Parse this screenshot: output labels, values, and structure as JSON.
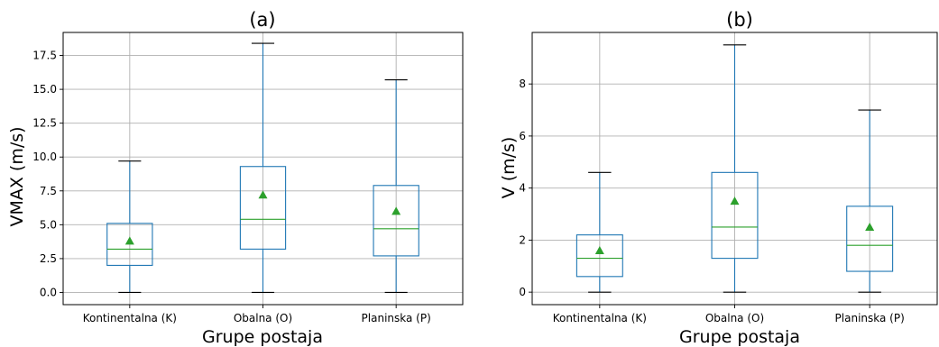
{
  "chart_data": [
    {
      "type": "boxplot",
      "title": "(a)",
      "xlabel": "Grupe postaja",
      "ylabel": "VMAX (m/s)",
      "categories": [
        "Kontinentalna (K)",
        "Obalna (O)",
        "Planinska (P)"
      ],
      "ylim": [
        -0.9,
        19.2
      ],
      "yticks": [
        0.0,
        2.5,
        5.0,
        7.5,
        10.0,
        12.5,
        15.0,
        17.5
      ],
      "ytick_labels": [
        "0.0",
        "2.5",
        "5.0",
        "7.5",
        "10.0",
        "12.5",
        "15.0",
        "17.5"
      ],
      "grid": true,
      "colors": {
        "box": "#1f77b4",
        "median": "#2ca02c",
        "mean": "#2ca02c",
        "cap": "#000000"
      },
      "boxes": [
        {
          "whislo": 0.0,
          "q1": 2.0,
          "med": 3.2,
          "q3": 5.1,
          "whishi": 9.7,
          "mean": 3.8
        },
        {
          "whislo": 0.0,
          "q1": 3.2,
          "med": 5.4,
          "q3": 9.3,
          "whishi": 18.4,
          "mean": 7.2
        },
        {
          "whislo": 0.0,
          "q1": 2.7,
          "med": 4.7,
          "q3": 7.9,
          "whishi": 15.7,
          "mean": 6.0
        }
      ]
    },
    {
      "type": "boxplot",
      "title": "(b)",
      "xlabel": "Grupe postaja",
      "ylabel": "V (m/s)",
      "categories": [
        "Kontinentalna (K)",
        "Obalna (O)",
        "Planinska (P)"
      ],
      "ylim": [
        -0.48,
        9.98
      ],
      "yticks": [
        0,
        2,
        4,
        6,
        8
      ],
      "ytick_labels": [
        "0",
        "2",
        "4",
        "6",
        "8"
      ],
      "grid": true,
      "colors": {
        "box": "#1f77b4",
        "median": "#2ca02c",
        "mean": "#2ca02c",
        "cap": "#000000"
      },
      "boxes": [
        {
          "whislo": 0.0,
          "q1": 0.6,
          "med": 1.3,
          "q3": 2.2,
          "whishi": 4.6,
          "mean": 1.6
        },
        {
          "whislo": 0.0,
          "q1": 1.3,
          "med": 2.5,
          "q3": 4.6,
          "whishi": 9.5,
          "mean": 3.5
        },
        {
          "whislo": 0.0,
          "q1": 0.8,
          "med": 1.8,
          "q3": 3.3,
          "whishi": 7.0,
          "mean": 2.5
        }
      ]
    }
  ]
}
